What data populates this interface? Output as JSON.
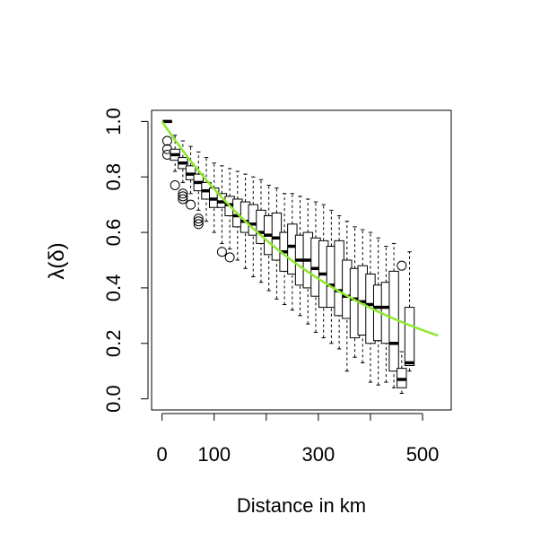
{
  "chart_data": {
    "type": "boxplot",
    "title": "",
    "xlabel": "Distance in km",
    "ylabel": "λ(δ)",
    "xlim": [
      -20,
      555
    ],
    "ylim": [
      -0.04,
      1.04
    ],
    "x_ticks": [
      0,
      100,
      200,
      300,
      400,
      500
    ],
    "x_tick_labels": [
      "0",
      "100",
      "",
      "300",
      "",
      "500"
    ],
    "y_ticks": [
      0.0,
      0.2,
      0.4,
      0.6,
      0.8,
      1.0
    ],
    "y_tick_labels": [
      "0.0",
      "0.2",
      "0.4",
      "0.6",
      "0.8",
      "1.0"
    ],
    "grid": false,
    "legend": "none",
    "box_fill": "#ffffff",
    "box_stroke": "#000000",
    "boxes": [
      {
        "x": 10,
        "min": 1.0,
        "q1": 1.0,
        "median": 1.0,
        "q3": 1.0,
        "max": 1.0,
        "outliers": [
          0.93,
          0.9,
          0.88
        ]
      },
      {
        "x": 25,
        "min": 0.82,
        "q1": 0.86,
        "median": 0.88,
        "q3": 0.9,
        "max": 0.95,
        "outliers": [
          0.77
        ]
      },
      {
        "x": 40,
        "min": 0.78,
        "q1": 0.83,
        "median": 0.85,
        "q3": 0.87,
        "max": 0.93,
        "outliers": [
          0.74,
          0.73,
          0.72
        ]
      },
      {
        "x": 55,
        "min": 0.74,
        "q1": 0.79,
        "median": 0.81,
        "q3": 0.84,
        "max": 0.91,
        "outliers": [
          0.7
        ]
      },
      {
        "x": 70,
        "min": 0.68,
        "q1": 0.75,
        "median": 0.78,
        "q3": 0.81,
        "max": 0.89,
        "outliers": [
          0.65,
          0.64,
          0.63
        ]
      },
      {
        "x": 85,
        "min": 0.64,
        "q1": 0.72,
        "median": 0.75,
        "q3": 0.78,
        "max": 0.87,
        "outliers": []
      },
      {
        "x": 100,
        "min": 0.6,
        "q1": 0.69,
        "median": 0.72,
        "q3": 0.76,
        "max": 0.85,
        "outliers": []
      },
      {
        "x": 115,
        "min": 0.56,
        "q1": 0.69,
        "median": 0.71,
        "q3": 0.74,
        "max": 0.84,
        "outliers": [
          0.53
        ]
      },
      {
        "x": 130,
        "min": 0.54,
        "q1": 0.66,
        "median": 0.7,
        "q3": 0.73,
        "max": 0.83,
        "outliers": [
          0.51
        ]
      },
      {
        "x": 145,
        "min": 0.5,
        "q1": 0.62,
        "median": 0.66,
        "q3": 0.72,
        "max": 0.82,
        "outliers": []
      },
      {
        "x": 160,
        "min": 0.47,
        "q1": 0.6,
        "median": 0.64,
        "q3": 0.71,
        "max": 0.81,
        "outliers": []
      },
      {
        "x": 175,
        "min": 0.44,
        "q1": 0.59,
        "median": 0.63,
        "q3": 0.7,
        "max": 0.8,
        "outliers": []
      },
      {
        "x": 190,
        "min": 0.42,
        "q1": 0.56,
        "median": 0.6,
        "q3": 0.68,
        "max": 0.79,
        "outliers": []
      },
      {
        "x": 205,
        "min": 0.39,
        "q1": 0.52,
        "median": 0.59,
        "q3": 0.66,
        "max": 0.77,
        "outliers": []
      },
      {
        "x": 220,
        "min": 0.36,
        "q1": 0.5,
        "median": 0.58,
        "q3": 0.67,
        "max": 0.76,
        "outliers": []
      },
      {
        "x": 235,
        "min": 0.34,
        "q1": 0.46,
        "median": 0.53,
        "q3": 0.6,
        "max": 0.74,
        "outliers": []
      },
      {
        "x": 250,
        "min": 0.32,
        "q1": 0.45,
        "median": 0.55,
        "q3": 0.63,
        "max": 0.74,
        "outliers": []
      },
      {
        "x": 265,
        "min": 0.3,
        "q1": 0.41,
        "median": 0.5,
        "q3": 0.59,
        "max": 0.73,
        "outliers": []
      },
      {
        "x": 280,
        "min": 0.27,
        "q1": 0.4,
        "median": 0.5,
        "q3": 0.6,
        "max": 0.72,
        "outliers": []
      },
      {
        "x": 295,
        "min": 0.24,
        "q1": 0.37,
        "median": 0.47,
        "q3": 0.58,
        "max": 0.71,
        "outliers": []
      },
      {
        "x": 310,
        "min": 0.22,
        "q1": 0.33,
        "median": 0.45,
        "q3": 0.57,
        "max": 0.7,
        "outliers": []
      },
      {
        "x": 325,
        "min": 0.2,
        "q1": 0.33,
        "median": 0.41,
        "q3": 0.55,
        "max": 0.68,
        "outliers": []
      },
      {
        "x": 340,
        "min": 0.18,
        "q1": 0.3,
        "median": 0.39,
        "q3": 0.57,
        "max": 0.66,
        "outliers": []
      },
      {
        "x": 355,
        "min": 0.1,
        "q1": 0.29,
        "median": 0.37,
        "q3": 0.5,
        "max": 0.64,
        "outliers": []
      },
      {
        "x": 370,
        "min": 0.15,
        "q1": 0.22,
        "median": 0.36,
        "q3": 0.47,
        "max": 0.62,
        "outliers": []
      },
      {
        "x": 385,
        "min": 0.13,
        "q1": 0.23,
        "median": 0.35,
        "q3": 0.48,
        "max": 0.61,
        "outliers": []
      },
      {
        "x": 400,
        "min": 0.06,
        "q1": 0.2,
        "median": 0.34,
        "q3": 0.45,
        "max": 0.6,
        "outliers": []
      },
      {
        "x": 415,
        "min": 0.05,
        "q1": 0.21,
        "median": 0.33,
        "q3": 0.41,
        "max": 0.58,
        "outliers": []
      },
      {
        "x": 430,
        "min": 0.06,
        "q1": 0.2,
        "median": 0.33,
        "q3": 0.42,
        "max": 0.55,
        "outliers": []
      },
      {
        "x": 445,
        "min": 0.04,
        "q1": 0.1,
        "median": 0.2,
        "q3": 0.46,
        "max": 0.56,
        "outliers": []
      },
      {
        "x": 460,
        "min": 0.02,
        "q1": 0.04,
        "median": 0.07,
        "q3": 0.11,
        "max": 0.17,
        "outliers": [
          0.48
        ]
      },
      {
        "x": 475,
        "min": 0.1,
        "q1": 0.12,
        "median": 0.13,
        "q3": 0.33,
        "max": 0.53,
        "outliers": []
      }
    ],
    "curve": {
      "color": "#8fe82b",
      "x_start": 0,
      "x_end": 530,
      "formula": "exp(-0.00279 * x)"
    }
  }
}
